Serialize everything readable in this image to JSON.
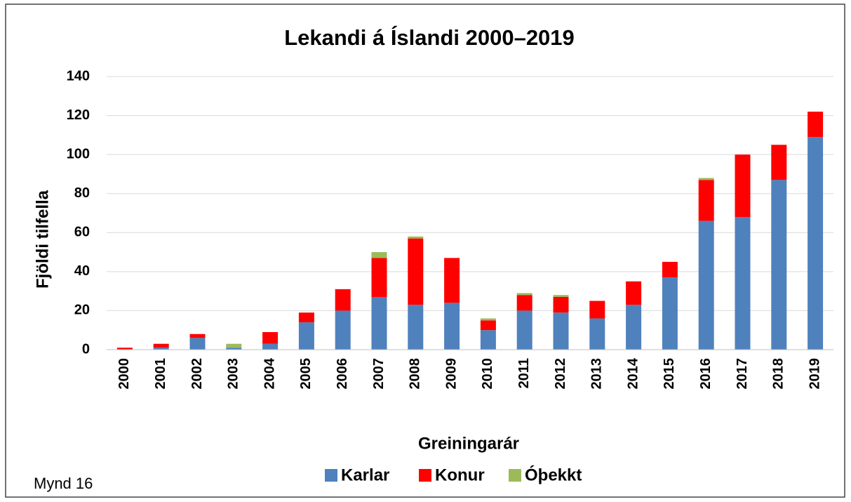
{
  "chart_data": {
    "type": "stacked_bar",
    "title": "Lekandi á Íslandi 2000–2019",
    "xlabel": "Greiningarár",
    "ylabel": "Fjöldi tilfella",
    "figure_label": "Mynd 16",
    "categories": [
      "2000",
      "2001",
      "2002",
      "2003",
      "2004",
      "2005",
      "2006",
      "2007",
      "2008",
      "2009",
      "2010",
      "2011",
      "2012",
      "2013",
      "2014",
      "2015",
      "2016",
      "2017",
      "2018",
      "2019"
    ],
    "series": [
      {
        "name": "Karlar",
        "color": "#4f81bd",
        "values": [
          0,
          1,
          6,
          1,
          3,
          14,
          20,
          27,
          23,
          24,
          10,
          20,
          19,
          16,
          23,
          37,
          66,
          68,
          87,
          109
        ]
      },
      {
        "name": "Konur",
        "color": "#ff0000",
        "values": [
          1,
          2,
          2,
          0,
          6,
          5,
          11,
          20,
          34,
          23,
          5,
          8,
          8,
          9,
          12,
          8,
          21,
          32,
          18,
          13
        ]
      },
      {
        "name": "Óþekkt",
        "color": "#9bbb59",
        "values": [
          0,
          0,
          0,
          2,
          0,
          0,
          0,
          3,
          1,
          0,
          1,
          1,
          1,
          0,
          0,
          0,
          1,
          0,
          0,
          0
        ]
      }
    ],
    "ylim": [
      0,
      140
    ],
    "yticks": [
      0,
      20,
      40,
      60,
      80,
      100,
      120,
      140
    ],
    "grid": true,
    "legend": "bottom"
  }
}
